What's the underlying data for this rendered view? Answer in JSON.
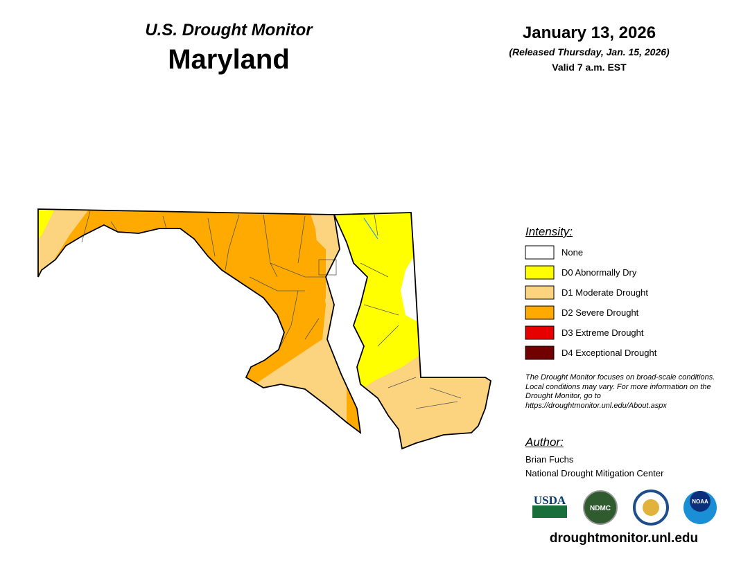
{
  "header": {
    "title": "U.S. Drought Monitor",
    "state": "Maryland"
  },
  "date": {
    "date": "January 13, 2026",
    "released": "(Released Thursday, Jan. 15, 2026)",
    "valid": "Valid 7 a.m. EST"
  },
  "legend": {
    "title": "Intensity:",
    "items": [
      {
        "label": "None",
        "color": "#ffffff"
      },
      {
        "label": "D0 Abnormally Dry",
        "color": "#ffff00"
      },
      {
        "label": "D1 Moderate Drought",
        "color": "#fcd37f"
      },
      {
        "label": "D2 Severe Drought",
        "color": "#ffaa00"
      },
      {
        "label": "D3 Extreme Drought",
        "color": "#e60000"
      },
      {
        "label": "D4 Exceptional Drought",
        "color": "#730000"
      }
    ]
  },
  "note": "The Drought Monitor focuses on broad-scale conditions. Local conditions may vary. For more information on the Drought Monitor, go to https://droughtmonitor.unl.edu/About.aspx",
  "author": {
    "title": "Author:",
    "name": "Brian Fuchs",
    "org": "National Drought Mitigation Center"
  },
  "logos": [
    "USDA",
    "NDMC",
    "NOAA"
  ],
  "url": "droughtmonitor.unl.edu"
}
